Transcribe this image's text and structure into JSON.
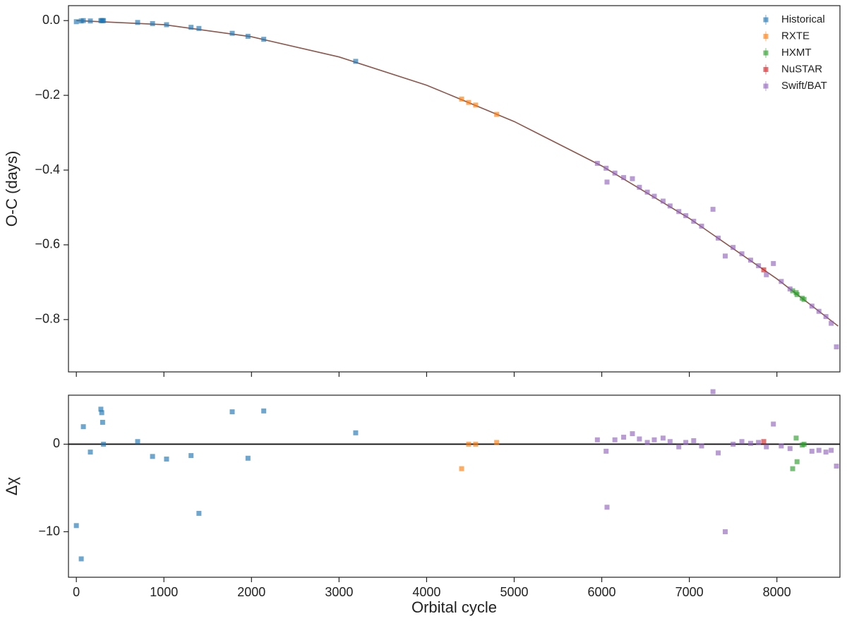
{
  "chart_data": [
    {
      "type": "scatter",
      "y_label": "O-C (days)",
      "xlim": [
        -90,
        8720
      ],
      "ylim": [
        -0.94,
        0.04
      ],
      "xticks": [
        0,
        1000,
        2000,
        3000,
        4000,
        5000,
        6000,
        7000,
        8000
      ],
      "yticks": [
        {
          "value": 0,
          "label": "0.0"
        },
        {
          "value": -0.2,
          "label": "−0.2"
        },
        {
          "value": -0.4,
          "label": "−0.4"
        },
        {
          "value": -0.6,
          "label": "−0.6"
        },
        {
          "value": -0.8,
          "label": "−0.8"
        }
      ],
      "legend": "upper right",
      "series": [
        {
          "name": "Historical",
          "color": "#1f77b4",
          "x": [
            0,
            56,
            80,
            160,
            280,
            290,
            300,
            310,
            700,
            870,
            1030,
            1310,
            1400,
            1780,
            1960,
            2140,
            3190
          ],
          "values": [
            -0.003,
            -0.001,
            0,
            -0.001,
            0,
            0,
            0,
            0,
            -0.005,
            -0.008,
            -0.011,
            -0.018,
            -0.021,
            -0.034,
            -0.042,
            -0.05,
            -0.109
          ]
        },
        {
          "name": "RXTE",
          "color": "#ff7f0e",
          "x": [
            4400,
            4480,
            4560,
            4800
          ],
          "values": [
            -0.21,
            -0.219,
            -0.226,
            -0.251
          ]
        },
        {
          "name": "HXMT",
          "color": "#2ca02c",
          "x": [
            8180,
            8220,
            8230,
            8290,
            8310
          ],
          "values": [
            -0.723,
            -0.728,
            -0.733,
            -0.743,
            -0.746
          ]
        },
        {
          "name": "NuSTAR",
          "color": "#d62728",
          "x": [
            7850
          ],
          "values": [
            -0.667
          ]
        },
        {
          "name": "Swift/BAT",
          "color": "#9467bd",
          "x": [
            5950,
            6050,
            6060,
            6150,
            6250,
            6350,
            6430,
            6520,
            6600,
            6700,
            6780,
            6880,
            6960,
            7050,
            7140,
            7270,
            7330,
            7410,
            7500,
            7600,
            7700,
            7790,
            7880,
            7960,
            8050,
            8150,
            8400,
            8480,
            8560,
            8620,
            8680
          ],
          "values": [
            -0.382,
            -0.395,
            -0.432,
            -0.408,
            -0.42,
            -0.423,
            -0.446,
            -0.459,
            -0.47,
            -0.483,
            -0.496,
            -0.511,
            -0.522,
            -0.537,
            -0.55,
            -0.505,
            -0.582,
            -0.63,
            -0.607,
            -0.624,
            -0.641,
            -0.656,
            -0.68,
            -0.65,
            -0.698,
            -0.718,
            -0.764,
            -0.778,
            -0.792,
            -0.81,
            -0.873
          ]
        }
      ],
      "fit_line": {
        "color": "#8c564b",
        "x": [
          0,
          1000,
          2000,
          3000,
          4000,
          5000,
          6000,
          7000,
          8000,
          8700
        ],
        "values": [
          0,
          -0.0108,
          -0.0432,
          -0.0972,
          -0.1728,
          -0.27,
          -0.3888,
          -0.5292,
          -0.6912,
          -0.8175
        ]
      }
    },
    {
      "type": "scatter",
      "x_label": "Orbital cycle",
      "y_label": "Δχ",
      "xlim": [
        -90,
        8720
      ],
      "ylim": [
        -15.2,
        5.6
      ],
      "xticks": [
        0,
        1000,
        2000,
        3000,
        4000,
        5000,
        6000,
        7000,
        8000
      ],
      "yticks": [
        0,
        {
          "value": -10,
          "label": "−10"
        }
      ],
      "hline": 0,
      "series": [
        {
          "name": "Historical",
          "color": "#1f77b4",
          "x": [
            0,
            56,
            80,
            160,
            280,
            290,
            300,
            310,
            700,
            870,
            1030,
            1310,
            1400,
            1780,
            1960,
            2140,
            3190
          ],
          "values": [
            -9.3,
            -13.1,
            2.0,
            -0.9,
            4.0,
            3.6,
            2.5,
            0.0,
            0.3,
            -1.4,
            -1.7,
            -1.3,
            -7.9,
            3.7,
            -1.6,
            3.8,
            1.3
          ]
        },
        {
          "name": "RXTE",
          "color": "#ff7f0e",
          "x": [
            4400,
            4480,
            4560,
            4800
          ],
          "values": [
            -2.8,
            0,
            0,
            0.2
          ]
        },
        {
          "name": "HXMT",
          "color": "#2ca02c",
          "x": [
            8180,
            8220,
            8230,
            8290,
            8310
          ],
          "values": [
            -2.8,
            0.7,
            -2,
            -0.1,
            0
          ]
        },
        {
          "name": "NuSTAR",
          "color": "#d62728",
          "x": [
            7850
          ],
          "values": [
            0.3
          ]
        },
        {
          "name": "Swift/BAT",
          "color": "#9467bd",
          "x": [
            5950,
            6050,
            6060,
            6150,
            6250,
            6350,
            6430,
            6520,
            6600,
            6700,
            6780,
            6880,
            6960,
            7050,
            7140,
            7270,
            7330,
            7410,
            7500,
            7600,
            7700,
            7790,
            7880,
            7960,
            8050,
            8150,
            8400,
            8480,
            8560,
            8620,
            8680
          ],
          "values": [
            0.5,
            -0.8,
            -7.2,
            0.5,
            0.8,
            1.2,
            0.6,
            0.2,
            0.5,
            0.7,
            0.3,
            -0.3,
            0.2,
            0.4,
            -0.2,
            6.0,
            -1.0,
            -10.0,
            0,
            0.3,
            0.1,
            0.2,
            -0.3,
            2.3,
            -0.2,
            -0.5,
            -0.8,
            -0.7,
            -0.9,
            -0.7,
            -2.5
          ]
        }
      ]
    }
  ]
}
